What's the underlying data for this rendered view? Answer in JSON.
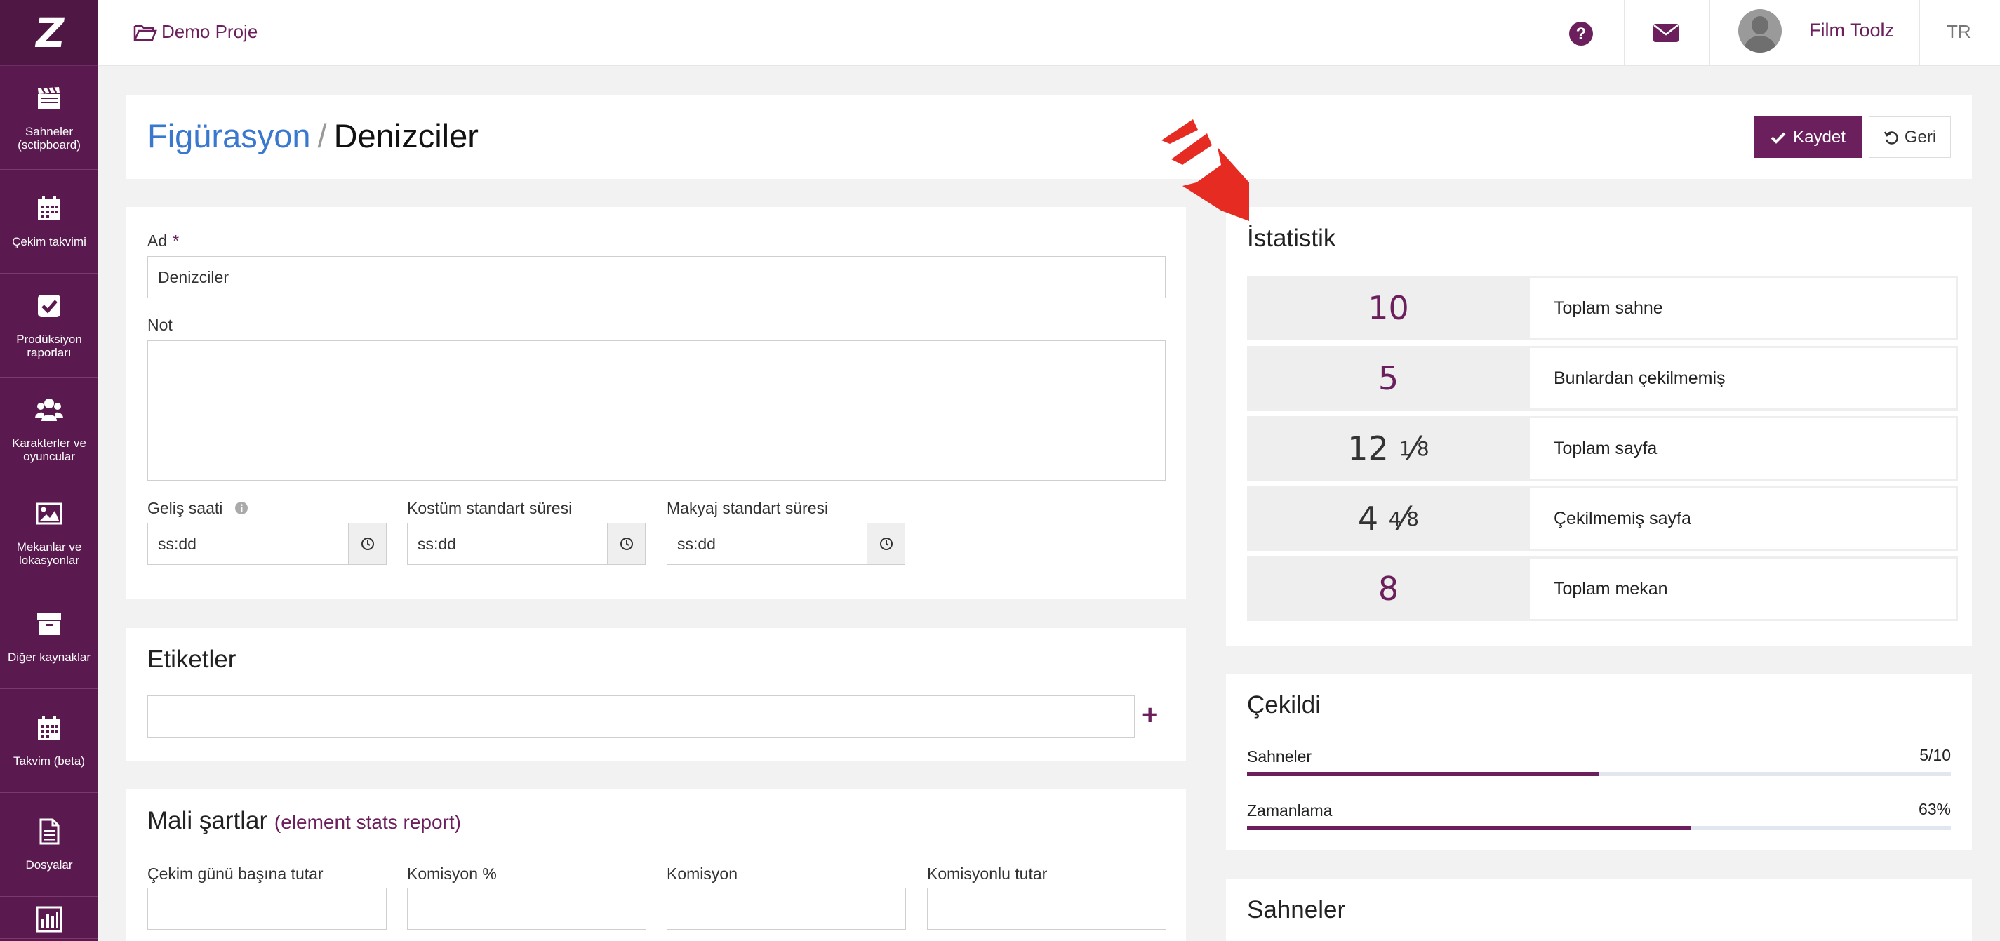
{
  "sidebar": {
    "items": [
      {
        "label": "Sahneler (sctipboard)",
        "icon": "clapperboard-icon"
      },
      {
        "label": "Çekim takvimi",
        "icon": "calendar-icon"
      },
      {
        "label": "Prodüksiyon raporları",
        "icon": "checkbox-icon"
      },
      {
        "label": "Karakterler ve oyuncular",
        "icon": "users-icon"
      },
      {
        "label": "Mekanlar ve lokasyonlar",
        "icon": "image-icon"
      },
      {
        "label": "Diğer kaynaklar",
        "icon": "archive-icon"
      },
      {
        "label": "Takvim (beta)",
        "icon": "calendar-icon"
      },
      {
        "label": "Dosyalar",
        "icon": "file-icon"
      }
    ]
  },
  "topbar": {
    "project": "Demo Proje",
    "user": "Film Toolz",
    "lang": "TR"
  },
  "header": {
    "crumb": "Figürasyon",
    "separator": "/",
    "current": "Denizciler",
    "save": "Kaydet",
    "back": "Geri"
  },
  "form": {
    "name_label": "Ad",
    "required_mark": "*",
    "name_value": "Denizciler",
    "note_label": "Not",
    "arrival_label": "Geliş saati",
    "costume_label": "Kostüm standart süresi",
    "makeup_label": "Makyaj standart süresi",
    "time_placeholder": "ss:dd"
  },
  "tags": {
    "title": "Etiketler",
    "add": "+"
  },
  "finance": {
    "title": "Mali şartlar",
    "link": "(element stats report)",
    "col1": "Çekim günü başına tutar",
    "col2": "Komisyon %",
    "col3": "Komisyon",
    "col4": "Komisyonlu tutar"
  },
  "stats": {
    "title": "İstatistik",
    "rows": [
      {
        "value": "10",
        "label": "Toplam sahne"
      },
      {
        "value": "5",
        "label": "Bunlardan çekilmemiş"
      },
      {
        "whole": "12",
        "num": "1",
        "slash": "⁄",
        "den": "8",
        "label": "Toplam sayfa"
      },
      {
        "whole": "4",
        "num": "4",
        "slash": "⁄",
        "den": "8",
        "label": "Çekilmemiş sayfa"
      },
      {
        "value": "8",
        "label": "Toplam mekan"
      }
    ]
  },
  "shot": {
    "title": "Çekildi",
    "scenes_label": "Sahneler",
    "scenes_value": "5/10",
    "scenes_fraction": 0.5,
    "timing_label": "Zamanlama",
    "timing_value": "63%",
    "timing_fraction": 0.63
  },
  "scenes": {
    "title": "Sahneler"
  },
  "colors": {
    "brand": "#6b1f5c",
    "sidebar": "#5b1a4f",
    "link": "#3a78d0",
    "logo_red": "#e52b22"
  }
}
